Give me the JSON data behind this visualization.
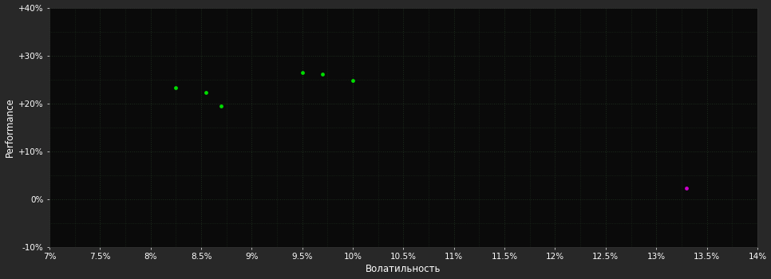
{
  "background_color": "#282828",
  "plot_bg_color": "#0a0a0a",
  "grid_color": "#1e2e1e",
  "xlabel": "Волатильность",
  "ylabel": "Performance",
  "xlim": [
    0.07,
    0.14
  ],
  "ylim": [
    -0.1,
    0.4
  ],
  "xticks": [
    0.07,
    0.075,
    0.08,
    0.085,
    0.09,
    0.095,
    0.1,
    0.105,
    0.11,
    0.115,
    0.12,
    0.125,
    0.13,
    0.135,
    0.14
  ],
  "yticks": [
    -0.1,
    0.0,
    0.1,
    0.2,
    0.3,
    0.4
  ],
  "ytick_labels": [
    "-10%",
    "0%",
    "+10%",
    "+20%",
    "+30%",
    "+40%"
  ],
  "xtick_labels": [
    "7%",
    "7.5%",
    "8%",
    "8.5%",
    "9%",
    "9.5%",
    "10%",
    "10.5%",
    "11%",
    "11.5%",
    "12%",
    "12.5%",
    "13%",
    "13.5%",
    "14%"
  ],
  "green_points": [
    [
      0.0825,
      0.233
    ],
    [
      0.0855,
      0.222
    ],
    [
      0.087,
      0.195
    ],
    [
      0.095,
      0.265
    ],
    [
      0.097,
      0.261
    ],
    [
      0.1,
      0.247
    ]
  ],
  "purple_points": [
    [
      0.133,
      0.022
    ]
  ],
  "green_color": "#00dd00",
  "purple_color": "#cc00cc",
  "marker_size": 12,
  "tick_fontsize": 7.5,
  "label_fontsize": 8.5,
  "tick_color": "#ffffff",
  "label_color": "#ffffff",
  "spine_color": "#333333"
}
